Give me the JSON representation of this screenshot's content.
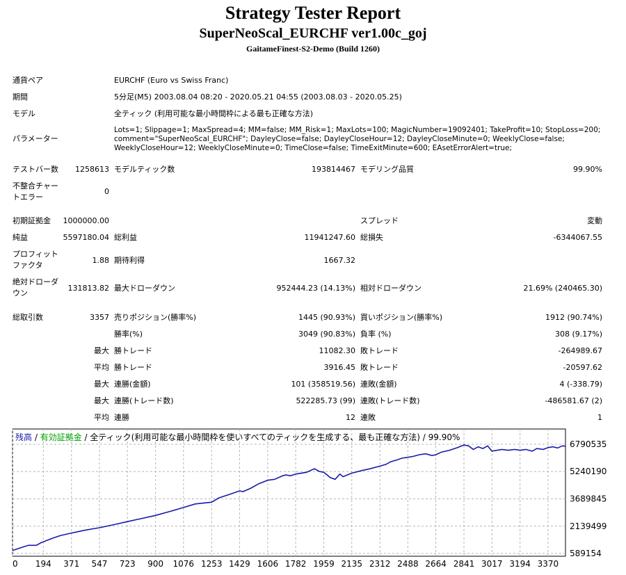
{
  "header": {
    "title": "Strategy Tester Report",
    "ea": "SuperNeoScal_EURCHF ver1.00c_goj",
    "server": "GaitameFinest-S2-Demo (Build 1260)"
  },
  "info": {
    "pair_label": "通貨ペア",
    "pair_value": "EURCHF (Euro vs Swiss Franc)",
    "period_label": "期間",
    "period_value": "5分足(M5) 2003.08.04 08:20 - 2020.05.21 04:55 (2003.08.03 - 2020.05.25)",
    "model_label": "モデル",
    "model_value": "全ティック (利用可能な最小時間枠による最も正確な方法)",
    "params_label": "パラメーター",
    "params_lines": [
      "Lots=1; Slippage=1; MaxSpread=4; MM=false; MM_Risk=1; MaxLots=100; MagicNumber=19092401; TakeProfit=10; StopLoss=200;",
      "comment=\"SuperNeoScal_EURCHF\"; DayleyClose=false; DayleyCloseHour=12; DayleyCloseMinute=0; WeeklyClose=false;",
      "WeeklyCloseHour=12; WeeklyCloseMinute=0; TimeClose=false; TimeExitMinute=600; EAsetErrorAlert=true;"
    ]
  },
  "stats": {
    "bars_label": "テストバー数",
    "bars_value": "1258613",
    "ticks_label": "モデルティック数",
    "ticks_value": "193814467",
    "quality_label": "モデリング品質",
    "quality_value": "99.90%",
    "mismatch_label_1": "不整合チャー",
    "mismatch_label_2": "トエラー",
    "mismatch_value": "0",
    "deposit_label": "初期証拠金",
    "deposit_value": "1000000.00",
    "spread_label": "スプレッド",
    "spread_value": "変動",
    "net_label": "純益",
    "net_value": "5597180.04",
    "gross_profit_label": "総利益",
    "gross_profit_value": "11941247.60",
    "gross_loss_label": "総損失",
    "gross_loss_value": "-6344067.55",
    "pf_label_1": "プロフィット",
    "pf_label_2": "ファクタ",
    "pf_value": "1.88",
    "expected_label": "期待利得",
    "expected_value": "1667.32",
    "abs_dd_label_1": "絶対ドローダ",
    "abs_dd_label_2": "ウン",
    "abs_dd_value": "131813.82",
    "max_dd_label": "最大ドローダウン",
    "max_dd_value": "952444.23 (14.13%)",
    "rel_dd_label": "相対ドローダウン",
    "rel_dd_value": "21.69% (240465.30)",
    "trades_label": "総取引数",
    "trades_value": "3357",
    "short_label": "売りポジション(勝率%)",
    "short_value": "1445 (90.93%)",
    "long_label": "買いポジション(勝率%)",
    "long_value": "1912 (90.74%)",
    "win_label": "勝率(%)",
    "win_value": "3049 (90.83%)",
    "loss_label": "負率 (%)",
    "loss_value": "308 (9.17%)",
    "max_word": "最大",
    "avg_word": "平均",
    "largest_win_label": "勝トレード",
    "largest_win_value": "11082.30",
    "largest_loss_label": "敗トレード",
    "largest_loss_value": "-264989.67",
    "avg_win_label": "勝トレード",
    "avg_win_value": "3916.45",
    "avg_loss_label": "敗トレード",
    "avg_loss_value": "-20597.62",
    "max_consec_wins_label": "連勝(金額)",
    "max_consec_wins_value": "101 (358519.56)",
    "max_consec_losses_label": "連敗(金額)",
    "max_consec_losses_value": "4 (-338.79)",
    "max_consec_profit_label": "連勝(トレード数)",
    "max_consec_profit_value": "522285.73 (99)",
    "max_consec_loss_label": "連敗(トレード数)",
    "max_consec_loss_value": "-486581.67 (2)",
    "avg_consec_wins_label": "連勝",
    "avg_consec_wins_value": "12",
    "avg_consec_losses_label": "連敗",
    "avg_consec_losses_value": "1"
  },
  "chart_legend": {
    "balance": "残高",
    "sep1": " / ",
    "equity": "有効証拠金",
    "sep2": " / ",
    "rest": "全ティック(利用可能な最小時間枠を使いすべてのティックを生成する、最も正確な方法) / 99.90%"
  },
  "colors": {
    "balance": "#1a1aa6",
    "equity": "#00a000",
    "grid": "#b4b4b4"
  },
  "chart_data": {
    "type": "line",
    "title": "",
    "xlabel": "",
    "ylabel": "",
    "x_ticks": [
      "0",
      "194",
      "371",
      "547",
      "723",
      "900",
      "1076",
      "1253",
      "1429",
      "1606",
      "1782",
      "1959",
      "2135",
      "2312",
      "2488",
      "2664",
      "2841",
      "3017",
      "3194",
      "3370"
    ],
    "y_ticks": [
      "6790535",
      "5240190",
      "3689845",
      "2139499",
      "589154"
    ],
    "xlim": [
      0,
      3480
    ],
    "ylim": [
      589154,
      6790535
    ],
    "grid": true,
    "series": [
      {
        "name": "残高",
        "x": [
          0,
          30,
          100,
          150,
          180,
          250,
          300,
          371,
          400,
          450,
          547,
          650,
          723,
          800,
          900,
          1000,
          1076,
          1150,
          1200,
          1253,
          1300,
          1350,
          1400,
          1429,
          1450,
          1500,
          1550,
          1606,
          1650,
          1700,
          1720,
          1750,
          1782,
          1850,
          1900,
          1930,
          1959,
          2000,
          2030,
          2060,
          2080,
          2135,
          2200,
          2250,
          2312,
          2350,
          2380,
          2420,
          2450,
          2488,
          2520,
          2560,
          2600,
          2640,
          2664,
          2700,
          2750,
          2800,
          2841,
          2870,
          2900,
          2930,
          2960,
          2990,
          3017,
          3050,
          3080,
          3120,
          3160,
          3194,
          3230,
          3270,
          3300,
          3340,
          3370,
          3400,
          3430,
          3460,
          3480
        ],
        "y": [
          750000,
          850000,
          1050000,
          1050000,
          1200000,
          1450000,
          1600000,
          1750000,
          1800000,
          1900000,
          2050000,
          2250000,
          2400000,
          2550000,
          2750000,
          3000000,
          3200000,
          3400000,
          3450000,
          3500000,
          3750000,
          3900000,
          4050000,
          4150000,
          4100000,
          4300000,
          4550000,
          4750000,
          4800000,
          5000000,
          5050000,
          5000000,
          5100000,
          5200000,
          5400000,
          5250000,
          5200000,
          4900000,
          4800000,
          5100000,
          4950000,
          5150000,
          5300000,
          5400000,
          5550000,
          5650000,
          5800000,
          5900000,
          6000000,
          6050000,
          6100000,
          6200000,
          6250000,
          6150000,
          6200000,
          6350000,
          6450000,
          6600000,
          6750000,
          6700000,
          6500000,
          6650000,
          6550000,
          6700000,
          6400000,
          6450000,
          6500000,
          6450000,
          6500000,
          6450000,
          6500000,
          6400000,
          6550000,
          6500000,
          6600000,
          6650000,
          6580000,
          6700000,
          6680000
        ]
      }
    ]
  }
}
